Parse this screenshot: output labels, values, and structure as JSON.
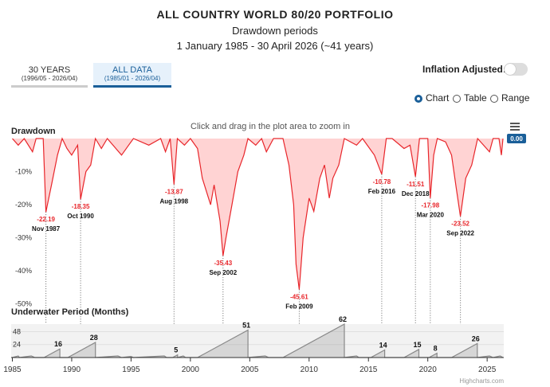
{
  "header": {
    "title": "ALL COUNTRY WORLD 80/20 PORTFOLIO",
    "subtitle": "Drawdown periods",
    "period": "1 January 1985 - 30 April 2026 (~41 years)"
  },
  "range_buttons": [
    {
      "label": "30 YEARS",
      "range": "(1996/05 - 2026/04)"
    },
    {
      "label": "ALL DATA",
      "range": "(1985/01 - 2026/04)"
    }
  ],
  "inflation_label": "Inflation Adjusted:",
  "views": [
    "Chart",
    "Table",
    "Range"
  ],
  "hint": "Click and drag in the plot area to zoom in",
  "credit": "Highcharts.com",
  "chart_data": [
    {
      "type": "area",
      "title": "Drawdown",
      "color": "#e8262b",
      "fill": "rgba(255,80,80,0.25)",
      "x": [
        1985.0,
        1985.5,
        1986.0,
        1986.7,
        1987.0,
        1987.6,
        1987.83,
        1988.3,
        1988.8,
        1989.2,
        1989.6,
        1990.0,
        1990.5,
        1990.75,
        1991.2,
        1991.6,
        1992.0,
        1992.5,
        1993.0,
        1994.2,
        1994.8,
        1995.2,
        1996.5,
        1997.5,
        1997.9,
        1998.3,
        1998.62,
        1998.9,
        1999.5,
        2000.0,
        2000.6,
        2001.0,
        2001.7,
        2002.0,
        2002.5,
        2002.75,
        2003.0,
        2003.5,
        2004.0,
        2004.5,
        2004.85,
        2005.5,
        2006.0,
        2006.4,
        2007.0,
        2007.8,
        2008.3,
        2008.7,
        2008.9,
        2009.17,
        2009.5,
        2010.0,
        2010.4,
        2010.9,
        2011.3,
        2011.7,
        2012.0,
        2012.5,
        2012.97,
        2014.0,
        2014.5,
        2015.5,
        2016.12,
        2016.5,
        2017.0,
        2018.0,
        2018.5,
        2018.96,
        2019.3,
        2020.0,
        2020.21,
        2020.5,
        2020.8,
        2021.5,
        2022.0,
        2022.4,
        2022.75,
        2023.2,
        2023.7,
        2024.2,
        2025.2,
        2025.5,
        2026.0,
        2026.2,
        2026.33
      ],
      "values": [
        0,
        -2,
        0,
        -4,
        0,
        0,
        -22.19,
        -14,
        -5,
        0,
        -3,
        -5,
        -2,
        -18.35,
        -10,
        -8,
        0,
        -3,
        0,
        -5,
        -2,
        0,
        -2,
        0,
        -4,
        0,
        -13.87,
        0,
        -2,
        0,
        -3,
        -12,
        -20,
        -14,
        -25,
        -35.43,
        -30,
        -20,
        -10,
        -5,
        0,
        -2,
        0,
        -4,
        0,
        0,
        -8,
        -20,
        -38,
        -45.61,
        -30,
        -18,
        -22,
        -12,
        -8,
        -18,
        -12,
        -8,
        0,
        -2,
        0,
        -5,
        -10.78,
        0,
        0,
        -3,
        -2,
        -11.51,
        0,
        0,
        -17.98,
        -5,
        0,
        -1,
        -5,
        -15,
        -23.52,
        -12,
        -8,
        0,
        -4,
        0,
        0,
        -5,
        0
      ],
      "annotations": [
        {
          "x": 1987.83,
          "value": -22.19,
          "label": "Nov 1987"
        },
        {
          "x": 1990.75,
          "value": -18.35,
          "label": "Oct 1990"
        },
        {
          "x": 1998.62,
          "value": -13.87,
          "label": "Aug 1998"
        },
        {
          "x": 2002.75,
          "value": -35.43,
          "label": "Sep 2002"
        },
        {
          "x": 2009.17,
          "value": -45.61,
          "label": "Feb 2009"
        },
        {
          "x": 2016.12,
          "value": -10.78,
          "label": "Feb 2016"
        },
        {
          "x": 2018.96,
          "value": -11.51,
          "label": "Dec 2018"
        },
        {
          "x": 2020.21,
          "value": -17.98,
          "label": "Mar 2020"
        },
        {
          "x": 2022.75,
          "value": -23.52,
          "label": "Sep 2022"
        }
      ],
      "current": {
        "value": 0,
        "label": "0.00"
      },
      "xlim": [
        1984.9,
        2026.4
      ],
      "ylim": [
        -52,
        0
      ],
      "yticks": [
        {
          "value": -10,
          "label": "-10%"
        },
        {
          "value": -20,
          "label": "-20%"
        },
        {
          "value": -30,
          "label": "-30%"
        },
        {
          "value": -40,
          "label": "-40%"
        },
        {
          "value": -50,
          "label": "-50%"
        }
      ],
      "grid": false
    },
    {
      "type": "area",
      "title": "Underwater Period (Months)",
      "color": "#888888",
      "fill": "rgba(150,150,150,0.3)",
      "x": [
        1985.0,
        1985.5,
        1985.6,
        1986.6,
        1986.9,
        1987.0,
        1987.67,
        1989.0,
        1989.0,
        1989.67,
        1992.0,
        1992.0,
        1993.9,
        1994.2,
        1994.2,
        1995.0,
        1995.2,
        1995.2,
        1997.8,
        1998.0,
        1998.0,
        1998.5,
        1998.92,
        1998.92,
        1999.4,
        1999.6,
        1999.6,
        2000.6,
        2004.85,
        2004.85,
        2006.3,
        2006.6,
        2006.6,
        2007.8,
        2012.97,
        2012.97,
        2014.0,
        2014.2,
        2014.2,
        2015.2,
        2016.37,
        2016.37,
        2018.0,
        2019.25,
        2019.25,
        2020.1,
        2020.77,
        2020.77,
        2022.0,
        2024.17,
        2024.17,
        2025.2,
        2025.5,
        2025.5,
        2026.1,
        2026.33
      ],
      "values": [
        0,
        3,
        0,
        3,
        0,
        0,
        0,
        16,
        0,
        0,
        28,
        0,
        3,
        0,
        0,
        2,
        0,
        0,
        3,
        0,
        0,
        0,
        5,
        0,
        3,
        0,
        0,
        0,
        51,
        0,
        3,
        0,
        0,
        0,
        62,
        0,
        3,
        0,
        0,
        0,
        14,
        0,
        0,
        15,
        0,
        0,
        8,
        0,
        0,
        26,
        0,
        3,
        0,
        0,
        3,
        0
      ],
      "xlim": [
        1984.9,
        2026.4
      ],
      "ylim": [
        0,
        62
      ],
      "yticks": [
        24,
        48
      ],
      "xticks": [
        1985,
        1990,
        1995,
        2000,
        2005,
        2010,
        2015,
        2020,
        2025
      ],
      "grid": true
    }
  ]
}
